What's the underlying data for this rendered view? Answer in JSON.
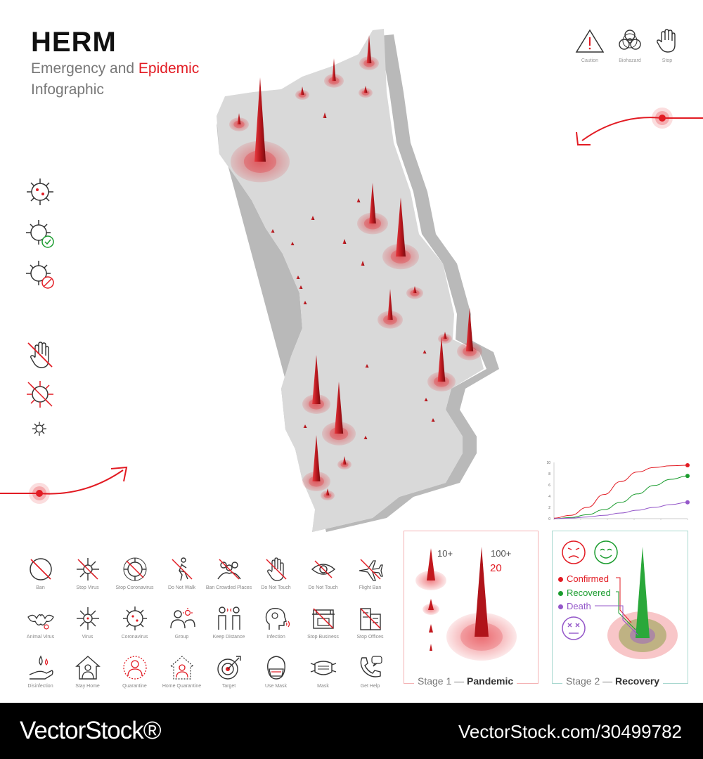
{
  "header": {
    "title": "HERM",
    "subtitle_part1": "Emergency and ",
    "subtitle_part2": "Epidemic",
    "subtitle_line2": "Infographic"
  },
  "hazard_icons": [
    {
      "icon": "caution-icon",
      "label": "Caution"
    },
    {
      "icon": "biohazard-icon",
      "label": "Biohazard"
    },
    {
      "icon": "stop-hand-icon",
      "label": "Stop"
    }
  ],
  "icon_grid": [
    {
      "icon": "ban-icon",
      "label": "Ban"
    },
    {
      "icon": "stop-virus-icon",
      "label": "Stop Virus"
    },
    {
      "icon": "stop-coronavirus-icon",
      "label": "Stop Coronavirus"
    },
    {
      "icon": "do-not-walk-icon",
      "label": "Do Not Walk"
    },
    {
      "icon": "ban-crowded-places-icon",
      "label": "Ban Crowded Places"
    },
    {
      "icon": "do-not-touch-hand-icon",
      "label": "Do Not Touch"
    },
    {
      "icon": "do-not-touch-eye-icon",
      "label": "Do Not Touch"
    },
    {
      "icon": "flight-ban-icon",
      "label": "Flight Ban"
    },
    {
      "icon": "animal-virus-icon",
      "label": "Animal Virus"
    },
    {
      "icon": "virus-icon",
      "label": "Virus"
    },
    {
      "icon": "coronavirus-icon",
      "label": "Coronavirus"
    },
    {
      "icon": "group-icon",
      "label": "Group"
    },
    {
      "icon": "keep-distance-icon",
      "label": "Keep Distance"
    },
    {
      "icon": "infection-icon",
      "label": "Infection"
    },
    {
      "icon": "stop-business-icon",
      "label": "Stop Business"
    },
    {
      "icon": "stop-offices-icon",
      "label": "Stop Offices"
    },
    {
      "icon": "disinfection-icon",
      "label": "Disinfection"
    },
    {
      "icon": "stay-home-icon",
      "label": "Stay Home"
    },
    {
      "icon": "quarantine-icon",
      "label": "Quarantine"
    },
    {
      "icon": "home-quarantine-icon",
      "label": "Home Quarantine"
    },
    {
      "icon": "target-icon",
      "label": "Target"
    },
    {
      "icon": "use-mask-icon",
      "label": "Use Mask"
    },
    {
      "icon": "mask-icon",
      "label": "Mask"
    },
    {
      "icon": "get-help-icon",
      "label": "Get Help"
    }
  ],
  "chart_data": {
    "type": "line",
    "ylim": [
      0,
      10
    ],
    "yticks": [
      "0",
      "2",
      "4",
      "6",
      "8",
      "10"
    ],
    "series": [
      {
        "color": "#e21b23",
        "x": [
          0,
          1,
          2,
          3,
          4,
          5,
          6,
          7,
          8
        ],
        "values": [
          0.1,
          0.6,
          2.0,
          4.3,
          6.6,
          8.3,
          9.1,
          9.4,
          9.5
        ]
      },
      {
        "color": "#1a9c2e",
        "x": [
          0,
          1,
          2,
          3,
          4,
          5,
          6,
          7,
          8
        ],
        "values": [
          0.0,
          0.2,
          0.7,
          1.6,
          2.9,
          4.4,
          5.9,
          7.0,
          7.6
        ]
      },
      {
        "color": "#9457c9",
        "x": [
          0,
          1,
          2,
          3,
          4,
          5,
          6,
          7,
          8
        ],
        "values": [
          0.0,
          0.1,
          0.3,
          0.6,
          1.0,
          1.5,
          2.0,
          2.5,
          2.9
        ]
      }
    ]
  },
  "stage1": {
    "label_pre": "Stage 1 — ",
    "label_bold": "Pandemic",
    "small_value": "10+",
    "large_value": "100+",
    "count": "20"
  },
  "stage2": {
    "label_pre": "Stage 2 — ",
    "label_bold": "Recovery",
    "legend": [
      {
        "label": "Confirmed",
        "color": "#e21b23"
      },
      {
        "label": "Recovered",
        "color": "#1a9c2e"
      },
      {
        "label": "Death",
        "color": "#9457c9"
      }
    ]
  },
  "colors": {
    "accent": "#e21b23",
    "map": "#d9d9d9",
    "map_side": "#bdbdbd"
  },
  "footer": {
    "brand": "VectorStock®",
    "code": "VectorStock.com/30499782"
  }
}
